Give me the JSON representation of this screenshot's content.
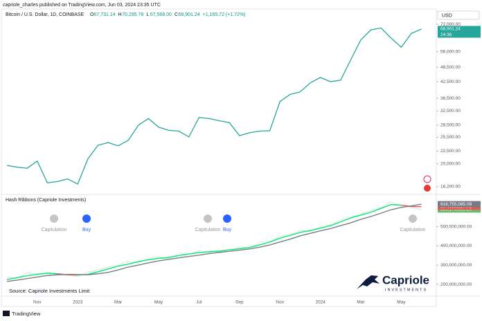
{
  "header": {
    "publisher": "capriole_charles published on TradingView.com, Jun 03, 2024 23:35 UTC",
    "brand": "TradingView"
  },
  "currency": "USD",
  "watermark": {
    "source": "Source: Capriole Investments Limit",
    "logo": "Capriole",
    "logo_sub": "INVESTMENTS"
  },
  "x_axis": {
    "categories": [
      null,
      null,
      null,
      "Nov",
      null,
      null,
      null,
      "2023",
      null,
      null,
      null,
      "Mar",
      null,
      null,
      null,
      "May",
      null,
      null,
      null,
      "Jul",
      null,
      null,
      null,
      "Sep",
      null,
      null,
      null,
      "Nov",
      null,
      null,
      null,
      "2024",
      null,
      null,
      null,
      "Mar",
      null,
      null,
      null,
      "May",
      null,
      null
    ]
  },
  "chart_data": [
    {
      "type": "line",
      "title": "Bitcoin / U.S. Dollar, 1D, COINBASE",
      "ohlc": [
        {
          "key": "O",
          "value": "67,731.14"
        },
        {
          "key": "H",
          "value": "70,295.78"
        },
        {
          "key": "L",
          "value": "67,568.00"
        },
        {
          "key": "C",
          "value": "68,901.24"
        }
      ],
      "change": "+1,165.72 (+1.72%)",
      "values": [
        19700,
        19400,
        19200,
        20500,
        16800,
        17000,
        17400,
        16600,
        20900,
        23700,
        24300,
        23600,
        24800,
        28500,
        30300,
        28000,
        27200,
        27000,
        25600,
        30600,
        30300,
        29700,
        29200,
        25900,
        26600,
        27000,
        27100,
        35400,
        37800,
        38700,
        42000,
        44200,
        42500,
        43100,
        51900,
        62400,
        68400,
        69600,
        63400,
        58300,
        66200,
        68901.24
      ],
      "last_value_label": "68,901.24",
      "countdown": "24:36",
      "color": "#26a69a",
      "log_scale": true,
      "grid": false,
      "ylim": [
        15200,
        82300
      ],
      "yticks": [
        {
          "value": 16200,
          "label": "16,200.00"
        },
        {
          "value": 20000,
          "label": "20,000.00"
        },
        {
          "value": 22500,
          "label": "22,500.00"
        },
        {
          "value": 25500,
          "label": "25,500.00"
        },
        {
          "value": 28500,
          "label": "28,500.00"
        },
        {
          "value": 32500,
          "label": "32,500.00"
        },
        {
          "value": 36500,
          "label": "36,500.00"
        },
        {
          "value": 42500,
          "label": "42,500.00"
        },
        {
          "value": 48500,
          "label": "48,500.00"
        },
        {
          "value": 56000,
          "label": "56,000.00"
        },
        {
          "value": 72000,
          "label": "72,000.00"
        }
      ]
    },
    {
      "type": "line",
      "title": "Hash Ribbons (Capriole Investments)",
      "annotations": [
        "Capitulation",
        "Buy",
        "Capitulation",
        "Buy",
        "Capitulation"
      ],
      "series": [
        {
          "color": "#66bb6a",
          "values": [
            240000000,
            230000000,
            260000000,
            255000000,
            265000000,
            250000000,
            245000000,
            240000000,
            265000000,
            275000000,
            290000000,
            300000000,
            320000000,
            310000000,
            335000000,
            345000000,
            330000000,
            360000000,
            355000000,
            375000000,
            365000000,
            380000000,
            370000000,
            395000000,
            390000000,
            420000000,
            425000000,
            450000000,
            460000000,
            480000000,
            475000000,
            500000000,
            510000000,
            535000000,
            550000000,
            565000000,
            585000000,
            600000000,
            630000000,
            605000000,
            600000000,
            589176522.29
          ],
          "last_value_label": "589,176,522.29"
        },
        {
          "color": "#00e676",
          "color_below": "#ef5350",
          "values": [
            225000000,
            235000000,
            245000000,
            252000000,
            258000000,
            255000000,
            250000000,
            248000000,
            252000000,
            265000000,
            280000000,
            295000000,
            305000000,
            318000000,
            328000000,
            335000000,
            340000000,
            350000000,
            358000000,
            365000000,
            370000000,
            372000000,
            380000000,
            385000000,
            392000000,
            405000000,
            420000000,
            440000000,
            455000000,
            470000000,
            480000000,
            492000000,
            505000000,
            525000000,
            545000000,
            560000000,
            575000000,
            595000000,
            615000000,
            612000000,
            605000000,
            604036217.72
          ],
          "last_value_label": "604,036,217.72"
        },
        {
          "color": "#787b86",
          "values": [
            215000000,
            222000000,
            230000000,
            238000000,
            246000000,
            250000000,
            252000000,
            251000000,
            250000000,
            255000000,
            262000000,
            275000000,
            290000000,
            300000000,
            312000000,
            322000000,
            330000000,
            338000000,
            345000000,
            352000000,
            360000000,
            366000000,
            372000000,
            378000000,
            384000000,
            393000000,
            405000000,
            420000000,
            435000000,
            452000000,
            465000000,
            478000000,
            490000000,
            505000000,
            520000000,
            538000000,
            553000000,
            570000000,
            588000000,
            600000000,
            608000000,
            616755085.08
          ],
          "last_value_label": "616,755,085.08"
        }
      ],
      "grid": false,
      "ylim": [
        139000000,
        664000000
      ],
      "yticks": [
        {
          "value": 200000000,
          "label": "200,000,000.00"
        },
        {
          "value": 300000000,
          "label": "300,000,000.00"
        },
        {
          "value": 400000000,
          "label": "400,000,000.00"
        },
        {
          "value": 500000000,
          "label": "500,000,000.00"
        }
      ]
    }
  ]
}
